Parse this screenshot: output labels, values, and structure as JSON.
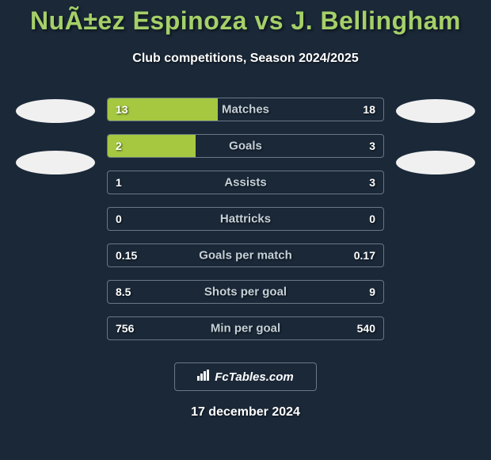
{
  "title_color": "#a5d068",
  "bar_color": "#a5c840",
  "border_color": "#6a7885",
  "background_color": "#1a2838",
  "text_color": "#ffffff",
  "label_color": "#c5d0d8",
  "avatar_color": "#f0f0f0",
  "header": {
    "title": "NuÃ±ez Espinoza vs J. Bellingham",
    "subtitle": "Club competitions, Season 2024/2025"
  },
  "stats": [
    {
      "label": "Matches",
      "left_val": "13",
      "right_val": "18",
      "left_width_pct": 40,
      "right_width_pct": 0
    },
    {
      "label": "Goals",
      "left_val": "2",
      "right_val": "3",
      "left_width_pct": 32,
      "right_width_pct": 0
    },
    {
      "label": "Assists",
      "left_val": "1",
      "right_val": "3",
      "left_width_pct": 0,
      "right_width_pct": 0
    },
    {
      "label": "Hattricks",
      "left_val": "0",
      "right_val": "0",
      "left_width_pct": 0,
      "right_width_pct": 0
    },
    {
      "label": "Goals per match",
      "left_val": "0.15",
      "right_val": "0.17",
      "left_width_pct": 0,
      "right_width_pct": 0
    },
    {
      "label": "Shots per goal",
      "left_val": "8.5",
      "right_val": "9",
      "left_width_pct": 0,
      "right_width_pct": 0
    },
    {
      "label": "Min per goal",
      "left_val": "756",
      "right_val": "540",
      "left_width_pct": 0,
      "right_width_pct": 0
    }
  ],
  "footer": {
    "icon_name": "chart-icon",
    "brand": "FcTables.com"
  },
  "date": "17 december 2024"
}
